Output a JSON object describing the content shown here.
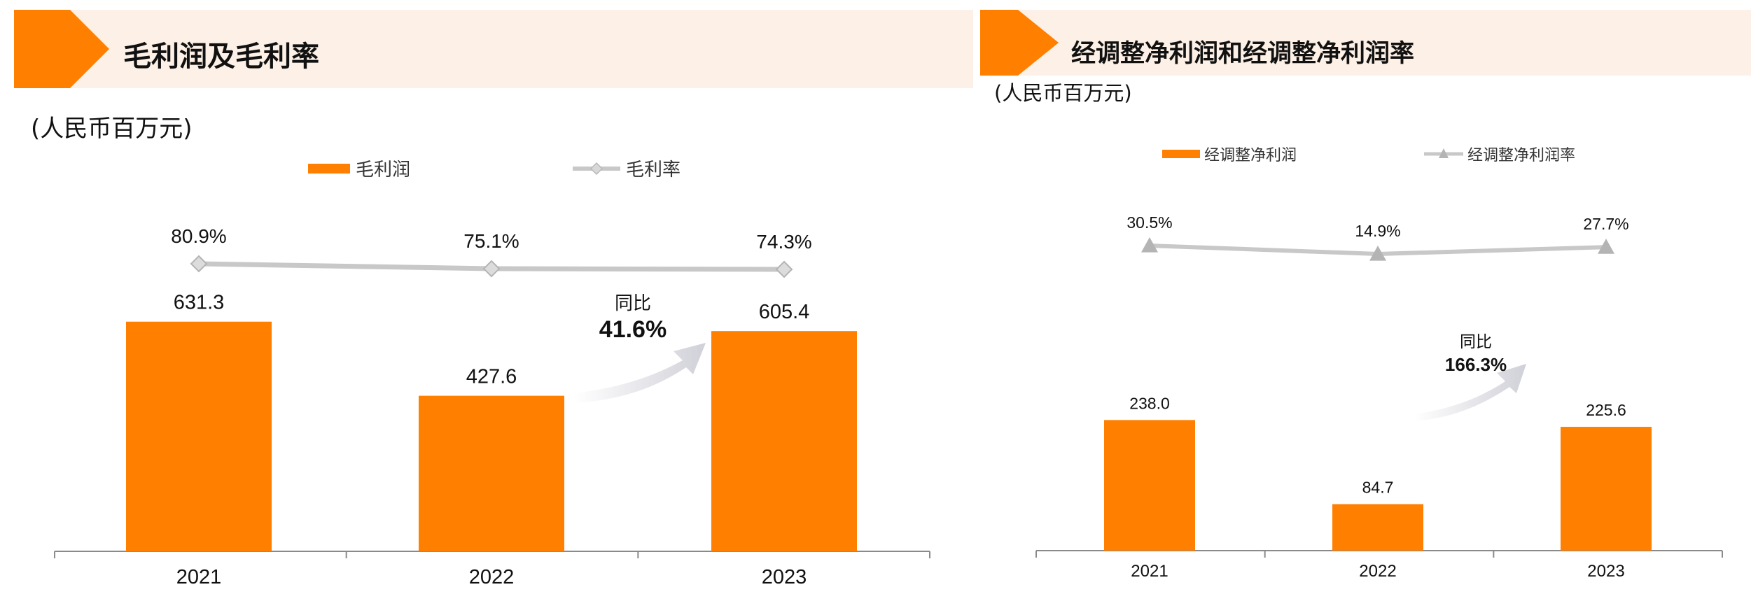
{
  "panels": [
    {
      "title": "毛利润及毛利率",
      "unit": "(人民币百万元)",
      "legend": {
        "bar_label": "毛利润",
        "line_label": "毛利率"
      },
      "yoy": {
        "label": "同比",
        "value": "41.6%"
      }
    },
    {
      "title": "经调整净利润和经调整净利润率",
      "unit": "(人民币百万元)",
      "legend": {
        "bar_label": "经调整净利润",
        "line_label": "经调整净利润率"
      },
      "yoy": {
        "label": "同比",
        "value": "166.3%"
      }
    }
  ],
  "colors": {
    "bar": "#ff7f00",
    "line": "#c8c8c8",
    "header_band": "#fdf0e6",
    "accent": "#ff7f00"
  },
  "chart_data": [
    {
      "type": "bar",
      "categories": [
        "2021",
        "2022",
        "2023"
      ],
      "series": [
        {
          "name": "毛利润",
          "type": "bar",
          "values": [
            631.3,
            427.6,
            605.4
          ],
          "labels": [
            "631.3",
            "427.6",
            "605.4"
          ]
        },
        {
          "name": "毛利率",
          "type": "line",
          "marker": "diamond",
          "values": [
            80.9,
            75.1,
            74.3
          ],
          "labels": [
            "80.9%",
            "75.1%",
            "74.3%"
          ]
        }
      ],
      "legend_position": "top-center",
      "grid": false
    },
    {
      "type": "bar",
      "categories": [
        "2021",
        "2022",
        "2023"
      ],
      "series": [
        {
          "name": "经调整净利润",
          "type": "bar",
          "values": [
            238.0,
            84.7,
            225.6
          ],
          "labels": [
            "238.0",
            "84.7",
            "225.6"
          ]
        },
        {
          "name": "经调整净利润率",
          "type": "line",
          "marker": "triangle",
          "values": [
            30.5,
            14.9,
            27.7
          ],
          "labels": [
            "30.5%",
            "14.9%",
            "27.7%"
          ]
        }
      ],
      "legend_position": "top-center",
      "grid": false
    }
  ]
}
